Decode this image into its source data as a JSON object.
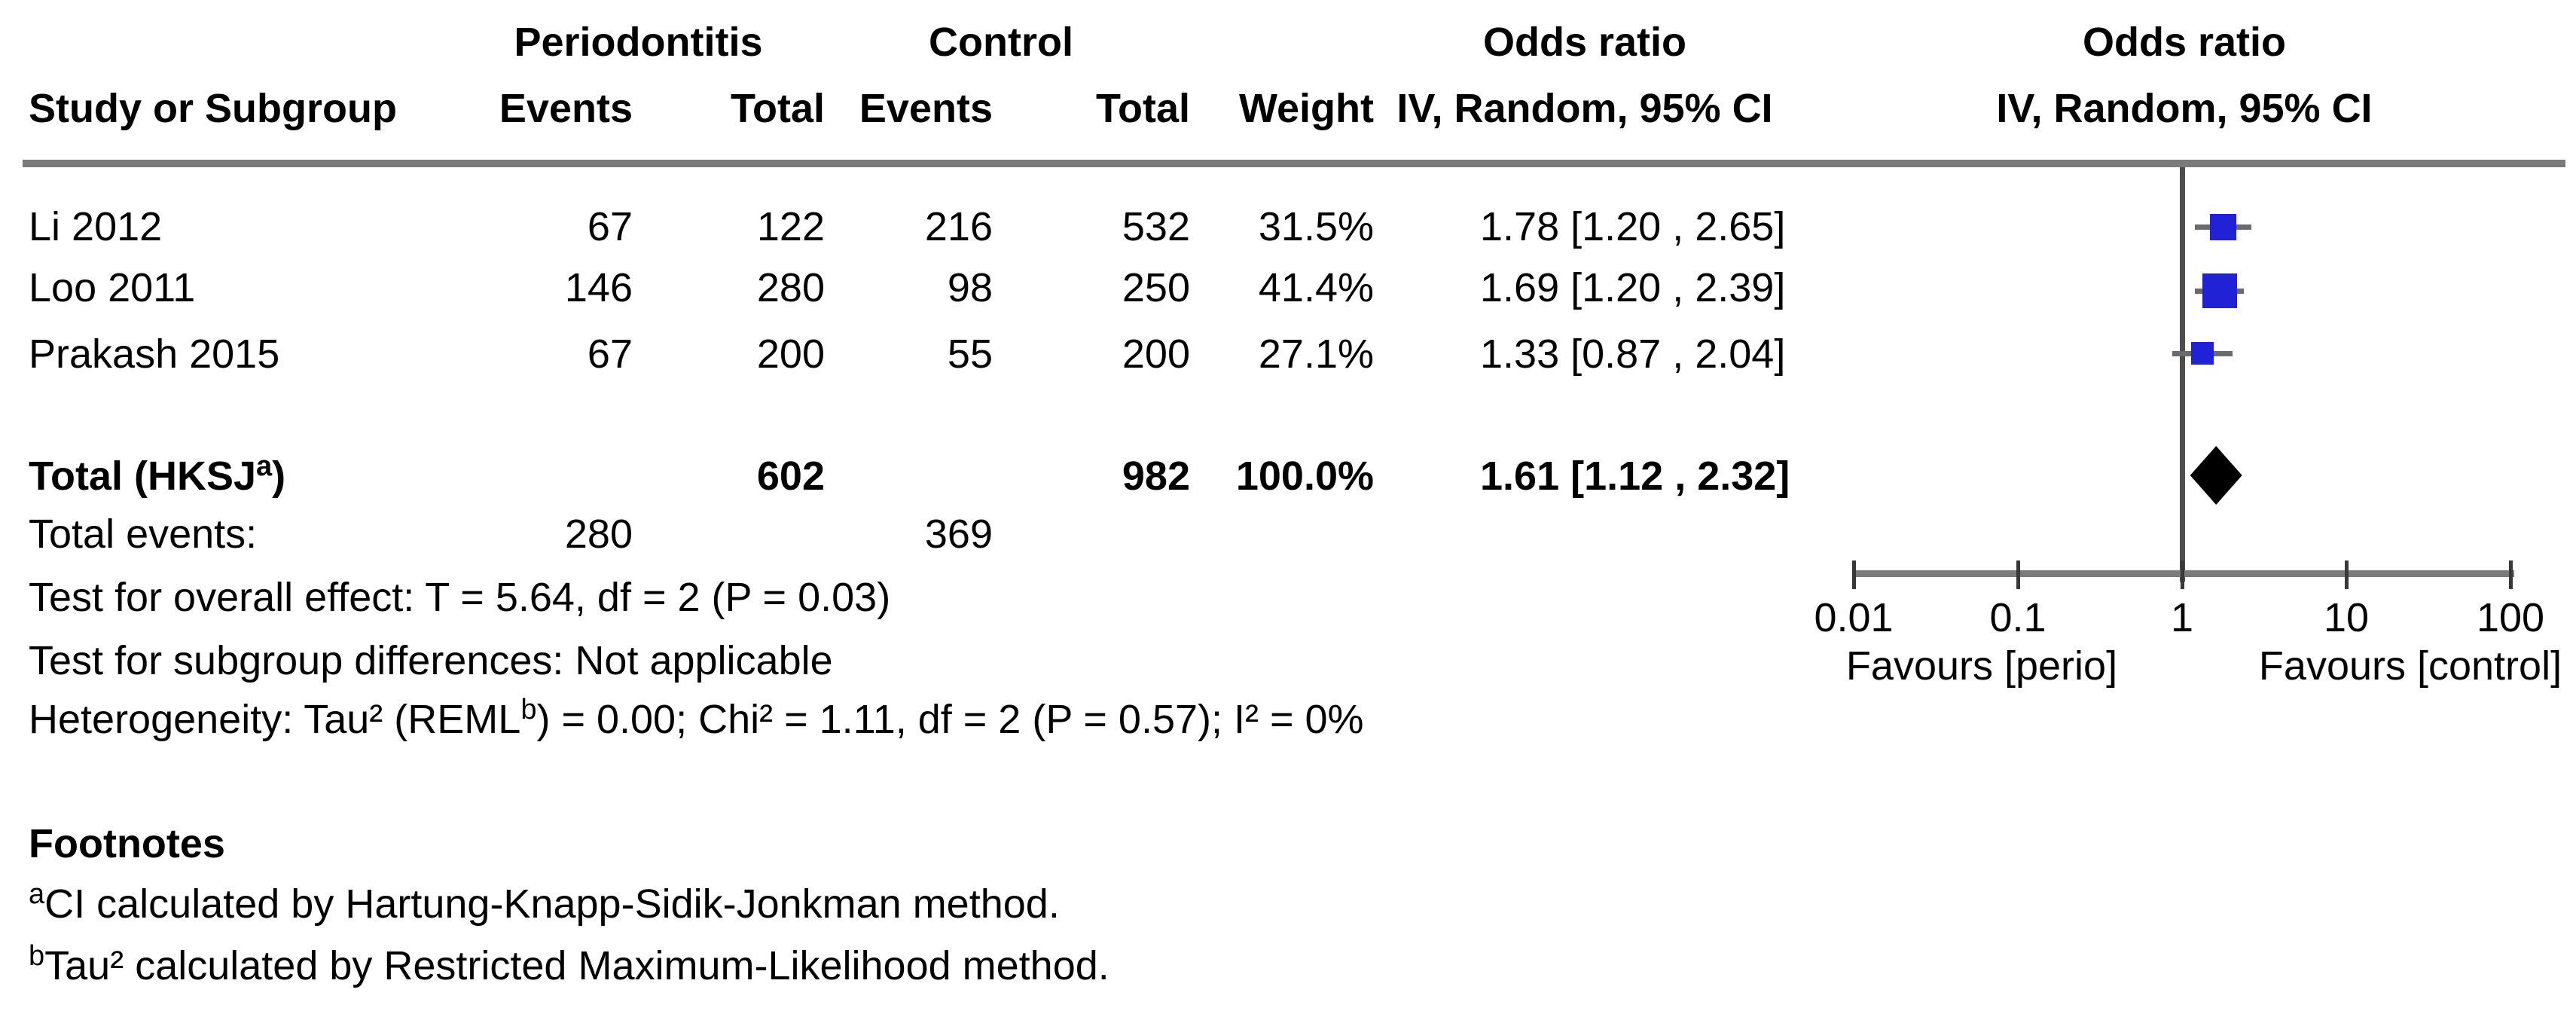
{
  "table": {
    "group_headers": {
      "exposure": "Periodontitis",
      "control": "Control",
      "or_text_col": "Odds ratio",
      "or_plot_col": "Odds ratio"
    },
    "col_headers": {
      "study": "Study or Subgroup",
      "p_events": "Events",
      "p_total": "Total",
      "c_events": "Events",
      "c_total": "Total",
      "weight": "Weight",
      "iv_text_col": "IV, Random, 95% CI",
      "iv_plot_col": "IV, Random, 95% CI"
    },
    "studies": [
      {
        "name": "Li 2012",
        "p_events": "67",
        "p_total": "122",
        "c_events": "216",
        "c_total": "532",
        "weight": "31.5%",
        "or_ci": "1.78 [1.20 , 2.65]"
      },
      {
        "name": "Loo 2011",
        "p_events": "146",
        "p_total": "280",
        "c_events": "98",
        "c_total": "250",
        "weight": "41.4%",
        "or_ci": "1.69 [1.20 , 2.39]"
      },
      {
        "name": "Prakash 2015",
        "p_events": "67",
        "p_total": "200",
        "c_events": "55",
        "c_total": "200",
        "weight": "27.1%",
        "or_ci": "1.33 [0.87 , 2.04]"
      }
    ],
    "total": {
      "label_pre": "Total (HKSJ",
      "label_sup": "a",
      "label_post": ")",
      "p_total": "602",
      "c_total": "982",
      "weight": "100.0%",
      "or_ci": "1.61 [1.12 , 2.32]"
    },
    "total_events": {
      "label": "Total events:",
      "p": "280",
      "c": "369"
    }
  },
  "stats": {
    "overall": "Test for overall effect: T = 5.64, df = 2 (P = 0.03)",
    "subgroup": "Test for subgroup differences: Not applicable",
    "het_pre": "Heterogeneity: Tau² (REML",
    "het_sup": "b",
    "het_post": ") = 0.00; Chi² = 1.11, df = 2 (P = 0.57); I² = 0%"
  },
  "axis": {
    "tick_labels": [
      "0.01",
      "0.1",
      "1",
      "10",
      "100"
    ],
    "favours_left": "Favours [perio]",
    "favours_right": "Favours [control]"
  },
  "footnotes": {
    "title": "Footnotes",
    "a_sup": "a",
    "a_text": "CI calculated by Hartung-Knapp-Sidik-Jonkman method.",
    "b_sup": "b",
    "b_text": "Tau² calculated by Restricted Maximum-Likelihood method."
  },
  "chart_data": {
    "type": "scatter",
    "variant": "forest-plot",
    "effect_measure": "Odds ratio, IV, Random, 95% CI",
    "x_scale": "log10",
    "xlim": [
      0.01,
      100
    ],
    "x_ticks": [
      0.01,
      0.1,
      1,
      10,
      100
    ],
    "null_line": 1,
    "studies": [
      {
        "name": "Li 2012",
        "or": 1.78,
        "ci_low": 1.2,
        "ci_high": 2.65,
        "weight_pct": 31.5
      },
      {
        "name": "Loo 2011",
        "or": 1.69,
        "ci_low": 1.2,
        "ci_high": 2.39,
        "weight_pct": 41.4
      },
      {
        "name": "Prakash 2015",
        "or": 1.33,
        "ci_low": 0.87,
        "ci_high": 2.04,
        "weight_pct": 27.1
      }
    ],
    "total": {
      "name": "Total (HKSJ)",
      "or": 1.61,
      "ci_low": 1.12,
      "ci_high": 2.32,
      "weight_pct": 100.0
    },
    "favours": [
      "Favours [perio]",
      "Favours [control]"
    ],
    "colors": {
      "study_marker": "#2121d6",
      "ci_line": "#6b6b6b",
      "diamond": "#000000",
      "axis": "#7b7b7b"
    }
  }
}
